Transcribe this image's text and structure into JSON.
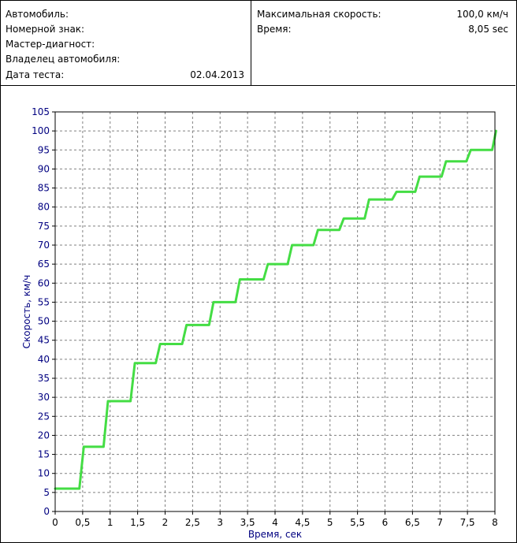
{
  "report": {
    "left": [
      {
        "label": "Автомобиль:",
        "value": ""
      },
      {
        "label": "Номерной знак:",
        "value": ""
      },
      {
        "label": "Мастер-диагност:",
        "value": ""
      },
      {
        "label": "Владелец  автомобиля:",
        "value": ""
      },
      {
        "label": "Дата теста:",
        "value": "02.04.2013"
      }
    ],
    "right": [
      {
        "label": "Максимальная скорость:",
        "value": "100,0 км/ч"
      },
      {
        "label": "Время:",
        "value": "8,05 sec"
      }
    ]
  },
  "chart_data": {
    "type": "line",
    "title": "",
    "xlabel": "Время, сек",
    "ylabel": "Скорость, км/ч",
    "xlim": [
      0,
      8
    ],
    "ylim": [
      0,
      105
    ],
    "xticks": [
      0,
      0.5,
      1,
      1.5,
      2,
      2.5,
      3,
      3.5,
      4,
      4.5,
      5,
      5.5,
      6,
      6.5,
      7,
      7.5,
      8
    ],
    "xtick_labels": [
      "0",
      "0,5",
      "1",
      "1,5",
      "2",
      "2,5",
      "3",
      "3,5",
      "4",
      "4,5",
      "5",
      "5,5",
      "6",
      "6,5",
      "7",
      "7,5",
      "8"
    ],
    "yticks": [
      0,
      5,
      10,
      15,
      20,
      25,
      30,
      35,
      40,
      45,
      50,
      55,
      60,
      65,
      70,
      75,
      80,
      85,
      90,
      95,
      100,
      105
    ],
    "grid": true,
    "line_color": "#44dd44",
    "axis_label_color": "#000080",
    "series": [
      {
        "x": [
          0,
          0.44,
          0.52,
          0.88,
          0.96,
          1.37,
          1.45,
          1.83,
          1.91,
          2.31,
          2.39,
          2.8,
          2.88,
          3.28,
          3.36,
          3.79,
          3.87,
          4.23,
          4.31,
          4.7,
          4.78,
          5.17,
          5.25,
          5.63,
          5.71,
          6.13,
          6.21,
          6.55,
          6.63,
          7.03,
          7.11,
          7.48,
          7.56,
          7.95,
          8.02
        ],
        "y": [
          6,
          6,
          17,
          17,
          29,
          29,
          39,
          39,
          44,
          44,
          49,
          49,
          55,
          55,
          61,
          61,
          65,
          65,
          70,
          70,
          74,
          74,
          77,
          77,
          82,
          82,
          84,
          84,
          88,
          88,
          92,
          92,
          95,
          95,
          100
        ]
      }
    ]
  }
}
